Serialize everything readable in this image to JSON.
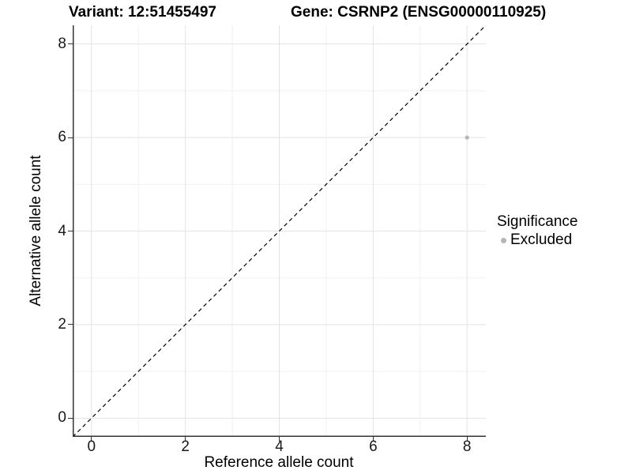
{
  "chart_data": {
    "type": "scatter",
    "title_left": "Variant: 12:51455497",
    "title_right": "Gene: CSRNP2 (ENSG00000110925)",
    "xlabel": "Reference allele count",
    "ylabel": "Alternative allele count",
    "xlim": [
      -0.4,
      8.4
    ],
    "ylim": [
      -0.4,
      8.4
    ],
    "x_ticks": [
      0,
      2,
      4,
      6,
      8
    ],
    "y_ticks": [
      0,
      2,
      4,
      6,
      8
    ],
    "x_minor_ticks": [
      1,
      3,
      5,
      7
    ],
    "y_minor_ticks": [
      1,
      3,
      5,
      7
    ],
    "grid": true,
    "points": [
      {
        "x": 8,
        "y": 6,
        "significance": "Excluded"
      }
    ],
    "reference_line": {
      "type": "identity",
      "style": "dashed"
    },
    "legend": {
      "title": "Significance",
      "position": "right",
      "items": [
        {
          "label": "Excluded",
          "color": "#b5b5b5"
        }
      ]
    }
  },
  "colors": {
    "background": "#ffffff",
    "text": "#000000",
    "axis_line": "#333333",
    "grid_major": "#e3e3e3",
    "grid_minor": "#f1f1f1",
    "point": "#b5b5b5",
    "reference_line": "#000000"
  }
}
